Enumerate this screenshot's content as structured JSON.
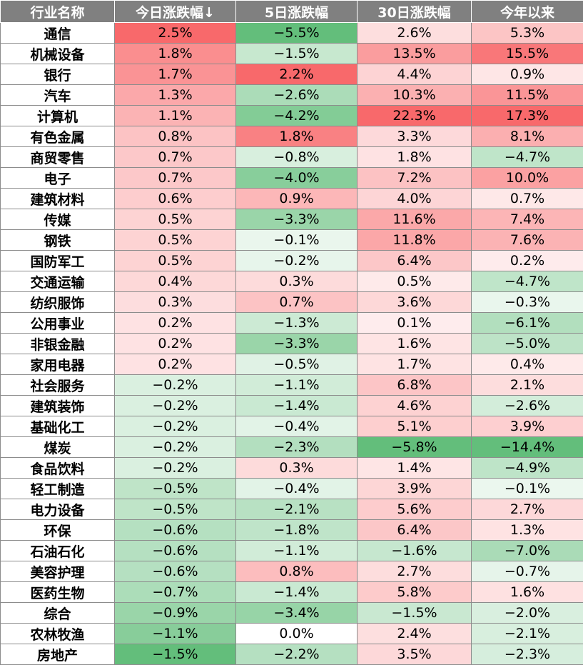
{
  "chart_data": {
    "type": "table",
    "columns": [
      "行业名称",
      "今日涨跌幅↓",
      "5日涨跌幅",
      "30日涨跌幅",
      "今年以来"
    ],
    "rows": [
      [
        "通信",
        "2.5%",
        "−5.5%",
        "2.6%",
        "5.3%"
      ],
      [
        "机械设备",
        "1.8%",
        "−1.5%",
        "13.5%",
        "15.5%"
      ],
      [
        "银行",
        "1.7%",
        "2.2%",
        "4.4%",
        "0.9%"
      ],
      [
        "汽车",
        "1.3%",
        "−2.6%",
        "10.3%",
        "11.5%"
      ],
      [
        "计算机",
        "1.1%",
        "−4.2%",
        "22.3%",
        "17.3%"
      ],
      [
        "有色金属",
        "0.8%",
        "1.8%",
        "3.3%",
        "8.1%"
      ],
      [
        "商贸零售",
        "0.7%",
        "−0.8%",
        "1.8%",
        "−4.7%"
      ],
      [
        "电子",
        "0.7%",
        "−4.0%",
        "7.2%",
        "10.0%"
      ],
      [
        "建筑材料",
        "0.6%",
        "0.9%",
        "4.0%",
        "0.7%"
      ],
      [
        "传媒",
        "0.5%",
        "−3.3%",
        "11.6%",
        "7.4%"
      ],
      [
        "钢铁",
        "0.5%",
        "−0.1%",
        "11.8%",
        "7.6%"
      ],
      [
        "国防军工",
        "0.5%",
        "−0.2%",
        "6.4%",
        "0.2%"
      ],
      [
        "交通运输",
        "0.4%",
        "0.3%",
        "0.5%",
        "−4.7%"
      ],
      [
        "纺织服饰",
        "0.3%",
        "0.7%",
        "3.6%",
        "−0.3%"
      ],
      [
        "公用事业",
        "0.2%",
        "−1.3%",
        "0.1%",
        "−6.1%"
      ],
      [
        "非银金融",
        "0.2%",
        "−3.3%",
        "1.6%",
        "−5.0%"
      ],
      [
        "家用电器",
        "0.2%",
        "−0.5%",
        "1.7%",
        "0.4%"
      ],
      [
        "社会服务",
        "−0.2%",
        "−1.1%",
        "6.8%",
        "2.1%"
      ],
      [
        "建筑装饰",
        "−0.2%",
        "−1.4%",
        "4.6%",
        "−2.6%"
      ],
      [
        "基础化工",
        "−0.2%",
        "−0.4%",
        "5.1%",
        "3.9%"
      ],
      [
        "煤炭",
        "−0.2%",
        "−2.3%",
        "−5.8%",
        "−14.4%"
      ],
      [
        "食品饮料",
        "−0.2%",
        "0.3%",
        "1.4%",
        "−4.9%"
      ],
      [
        "轻工制造",
        "−0.5%",
        "−0.4%",
        "3.9%",
        "−0.1%"
      ],
      [
        "电力设备",
        "−0.5%",
        "−2.1%",
        "5.6%",
        "2.7%"
      ],
      [
        "环保",
        "−0.6%",
        "−1.8%",
        "6.4%",
        "1.3%"
      ],
      [
        "石油石化",
        "−0.6%",
        "−1.1%",
        "−1.6%",
        "−7.0%"
      ],
      [
        "美容护理",
        "−0.6%",
        "0.8%",
        "2.7%",
        "−0.7%"
      ],
      [
        "医药生物",
        "−0.7%",
        "−1.4%",
        "5.8%",
        "1.6%"
      ],
      [
        "综合",
        "−0.9%",
        "−3.4%",
        "−1.5%",
        "−2.0%"
      ],
      [
        "农林牧渔",
        "−1.1%",
        "0.0%",
        "2.4%",
        "−2.1%"
      ],
      [
        "房地产",
        "−1.5%",
        "−2.2%",
        "3.5%",
        "−2.3%"
      ]
    ]
  },
  "colors": {
    "header_bg": "#808080",
    "positive_max": "#f8696b",
    "negative_max": "#63be7b",
    "neutral": "#ffffff"
  }
}
